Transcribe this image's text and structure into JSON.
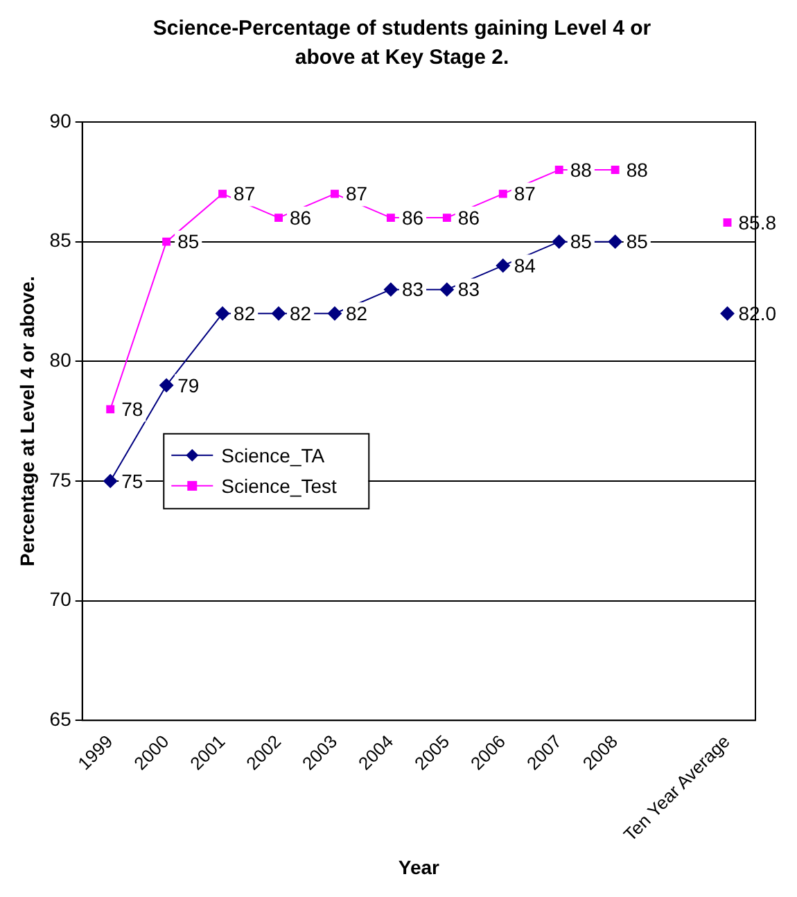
{
  "chart_data": {
    "type": "line",
    "title": "Science-Percentage of students gaining Level 4 or above at Key Stage 2.",
    "xlabel": "Year",
    "ylabel": "Percentage at Level 4 or above.",
    "categories": [
      "1999",
      "2000",
      "2001",
      "2002",
      "2003",
      "2004",
      "2005",
      "2006",
      "2007",
      "2008",
      null,
      "Ten Year Average"
    ],
    "series": [
      {
        "name": "Science_TA",
        "color": "#000080",
        "marker": "diamond",
        "values": [
          75,
          79,
          82,
          82,
          82,
          83,
          83,
          84,
          85,
          85,
          null,
          82.0
        ],
        "value_labels": [
          "75",
          "79",
          "82",
          "82",
          "82",
          "83",
          "83",
          "84",
          "85",
          "85",
          null,
          "82.0"
        ]
      },
      {
        "name": "Science_Test",
        "color": "#ff00ff",
        "marker": "square",
        "values": [
          78,
          85,
          87,
          86,
          87,
          86,
          86,
          87,
          88,
          88,
          null,
          85.8
        ],
        "value_labels": [
          "78",
          "85",
          "87",
          "86",
          "87",
          "86",
          "86",
          "87",
          "88",
          "88",
          null,
          "85.8"
        ]
      }
    ],
    "ylim": [
      65,
      90
    ],
    "yticks": [
      65,
      70,
      75,
      80,
      85,
      90
    ],
    "grid": "y",
    "legend": "left"
  }
}
